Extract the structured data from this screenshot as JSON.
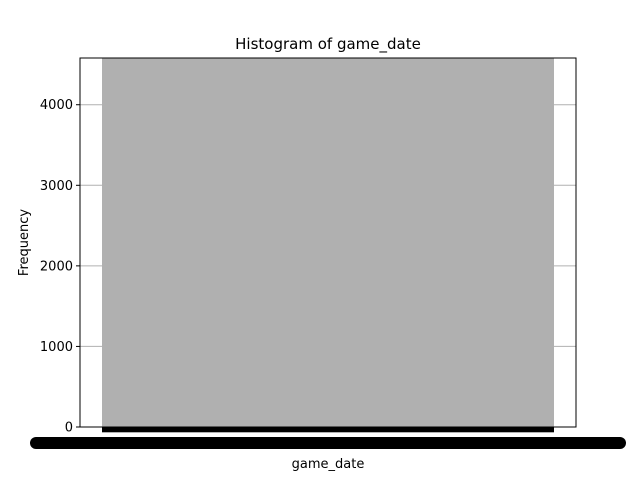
{
  "chart_data": {
    "type": "bar",
    "title": "Histogram of game_date",
    "xlabel": "game_date",
    "ylabel": "Frequency",
    "categories": [
      ""
    ],
    "values": [
      4580
    ],
    "ylim": [
      0,
      4580
    ],
    "yticks": [
      0,
      1000,
      2000,
      3000,
      4000
    ],
    "grid": "y",
    "colors": {
      "bar": "#b0b0b0",
      "grid": "#b0b0b0",
      "axis": "#000000"
    }
  }
}
